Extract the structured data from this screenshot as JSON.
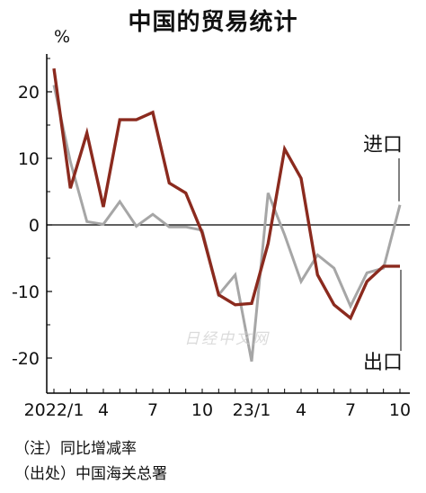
{
  "chart_data": {
    "type": "line",
    "title": "中国的贸易统计",
    "y_unit": "%",
    "ylim": [
      -25,
      27
    ],
    "yticks": [
      20,
      10,
      0,
      -10,
      -20
    ],
    "x": [
      "2022/1",
      "2022/2",
      "2022/3",
      "2022/4",
      "2022/5",
      "2022/6",
      "2022/7",
      "2022/8",
      "2022/9",
      "2022/10",
      "2022/11",
      "2022/12",
      "23/1",
      "23/2",
      "23/3",
      "23/4",
      "23/5",
      "23/6",
      "23/7",
      "23/8",
      "23/9",
      "23/10"
    ],
    "x_tick_labels": [
      "2022/1",
      "4",
      "7",
      "10",
      "23/1",
      "4",
      "7",
      "10"
    ],
    "x_tick_positions": [
      "2022/1",
      "2022/4",
      "2022/7",
      "2022/10",
      "23/1",
      "23/4",
      "23/7",
      "23/10"
    ],
    "grid": false,
    "series": [
      {
        "name": "进口",
        "color": "#a6a6a6",
        "values": [
          21,
          9.5,
          0.5,
          0.1,
          3.5,
          -0.2,
          1.6,
          -0.3,
          -0.3,
          -0.8,
          -10.5,
          -7.5,
          -20.5,
          4.8,
          -1.5,
          -8.5,
          -4.5,
          -6.5,
          -12.2,
          -7.2,
          -6.5,
          3.0
        ]
      },
      {
        "name": "出口",
        "color": "#8b2a1e",
        "values": [
          23.5,
          5.5,
          13.8,
          2.7,
          15.8,
          15.8,
          16.9,
          6.3,
          4.8,
          -1.2,
          -10.5,
          -12.0,
          -11.8,
          -2.8,
          11.4,
          7.0,
          -7.5,
          -12.0,
          -14.0,
          -8.5,
          -6.2,
          -6.2
        ]
      }
    ]
  },
  "notes": {
    "note": "（注）同比增减率",
    "source": "（出处）中国海关总署"
  },
  "watermark": "日经中文网",
  "colors": {
    "axis": "#000000",
    "import_line": "#a6a6a6",
    "export_line": "#8b2a1e"
  }
}
